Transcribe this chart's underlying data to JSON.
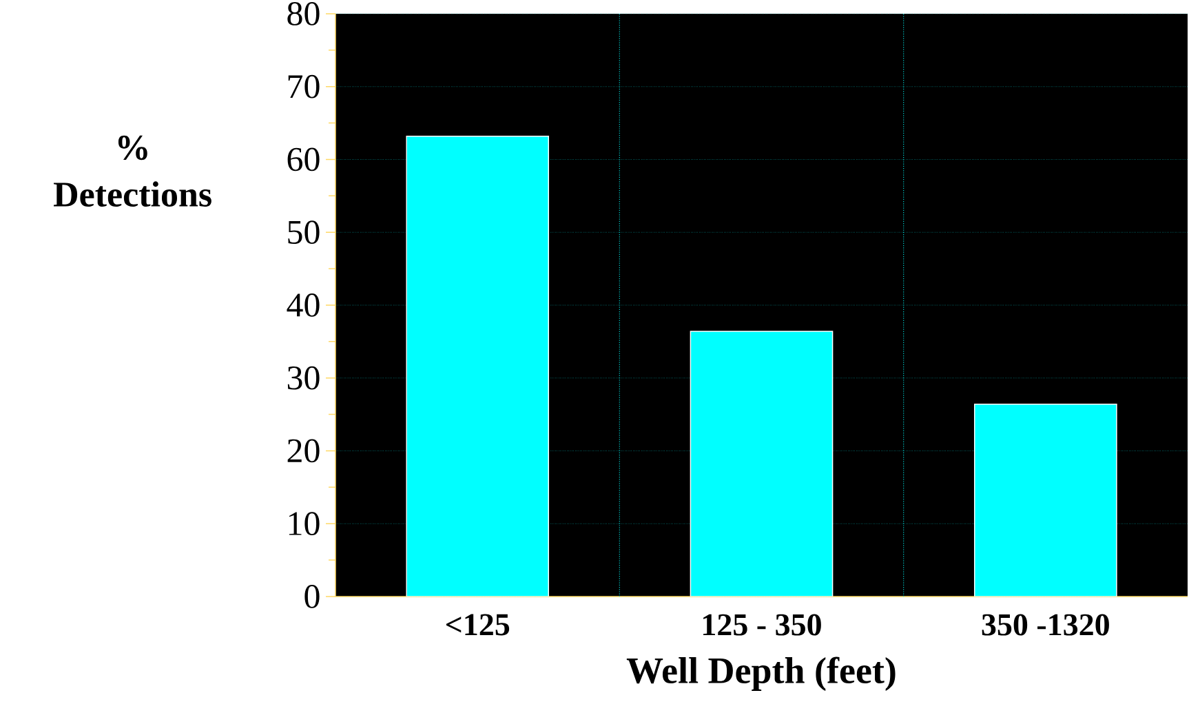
{
  "chart_data": {
    "type": "bar",
    "xlabel": "Well Depth (feet)",
    "ylabel": "% Detections",
    "categories": [
      "<125",
      "125 - 350",
      "350 -1320"
    ],
    "values": [
      63.2,
      36.4,
      26.4
    ],
    "color": "#00ffff",
    "ylim": [
      0,
      80
    ],
    "yticks": [
      0,
      10,
      20,
      30,
      40,
      50,
      60,
      70,
      80
    ],
    "grid": true
  }
}
